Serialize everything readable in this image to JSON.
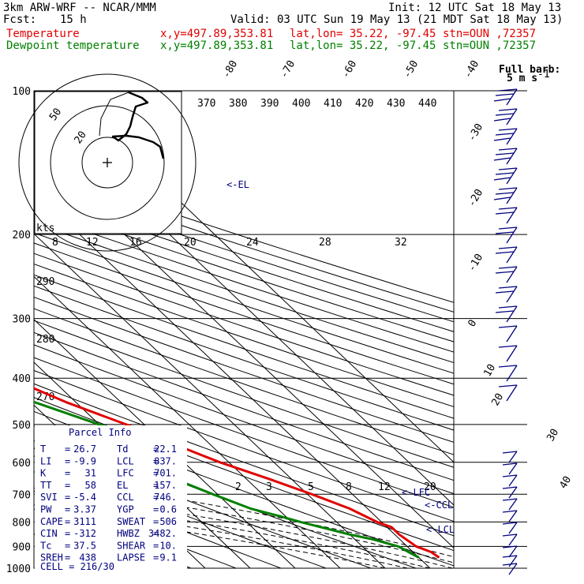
{
  "header": {
    "model": "3km ARW-WRF -- NCAR/MMM",
    "init": "Init: 12 UTC Sat 18 May 13",
    "fcst_label": "Fcst:",
    "fcst_value": "15 h",
    "valid": "Valid: 03 UTC Sun 19 May 13 (21 MDT Sat 18 May 13)",
    "temp_label": "Temperature",
    "dew_label": "Dewpoint temperature",
    "xy": "x,y=497.89,353.81",
    "latlon": "lat,lon= 35.22, -97.45",
    "stn": "stn=OUN ,72357"
  },
  "colors": {
    "temperature": "#e00000",
    "dewpoint": "#008000",
    "annotation": "#000080",
    "grid": "#000000"
  },
  "barb_legend": {
    "line1": "Full barb:",
    "line2": "5 m s",
    "sup": "-1"
  },
  "parcel_info": {
    "title": "Parcel Info",
    "rows": [
      [
        "T",
        "26.7",
        "Td",
        "22.1"
      ],
      [
        "LI",
        "-9.9",
        "LCL",
        "837."
      ],
      [
        "K",
        "31",
        "LFC",
        "701."
      ],
      [
        "TT",
        "58",
        "EL",
        "157."
      ],
      [
        "SVI",
        "-5.4",
        "CCL",
        "746."
      ],
      [
        "PW",
        "3.37",
        "YGP",
        "0.6"
      ],
      [
        "CAPE",
        "3111",
        "SWEAT",
        "506"
      ],
      [
        "CIN",
        "-312",
        "HWBZ",
        "3482."
      ],
      [
        "Tc",
        "37.5",
        "SHEAR",
        "10."
      ],
      [
        "SREH",
        "438",
        "LAPSE",
        "9.1"
      ]
    ],
    "cell": "CELL = 216/30"
  },
  "levels": {
    "el": "<-EL",
    "lfc": "<-LFC",
    "ccl": "<-CCL",
    "lcl": "<-LCL"
  },
  "hodograph": {
    "units": "kts",
    "ring_labels": [
      "50",
      "20"
    ]
  },
  "chart_data": {
    "type": "line",
    "subtype": "skew-T log-P",
    "pressure_ticks": [
      100,
      200,
      300,
      400,
      500,
      600,
      700,
      800,
      900,
      1000
    ],
    "plim": [
      100,
      1000
    ],
    "isotherm_labels": [
      -80,
      -70,
      -60,
      -50,
      -40,
      -30,
      -20,
      -10,
      0,
      10,
      20,
      30,
      40
    ],
    "theta_labels": [
      370,
      380,
      390,
      400,
      410,
      420,
      430,
      440
    ],
    "theta_e_labels": [
      290,
      280,
      270
    ],
    "mixing_ratio_labels_upper": [
      8,
      12,
      16,
      20,
      24,
      28,
      32
    ],
    "mixing_ratio_labels_lower": [
      2,
      3,
      5,
      8,
      12,
      20
    ],
    "series": [
      {
        "name": "Temperature",
        "p": [
          100,
          125,
          135,
          140,
          160,
          170,
          180,
          190,
          200,
          230,
          270,
          300,
          350,
          400,
          450,
          500,
          525,
          550,
          600,
          650,
          700,
          750,
          800,
          820,
          850,
          900,
          925,
          950
        ],
        "t": [
          -56,
          -60,
          -62,
          -62,
          -65,
          -66,
          -64,
          -62,
          -61,
          -56,
          -49,
          -44,
          -36,
          -29,
          -22,
          -14,
          -10,
          -8,
          -2,
          5,
          11,
          16,
          19,
          21,
          21,
          22,
          24,
          24.5
        ]
      },
      {
        "name": "Dewpoint temperature",
        "p": [
          100,
          120,
          140,
          150,
          160,
          170,
          180,
          190,
          200,
          250,
          300,
          350,
          400,
          450,
          500,
          525,
          550,
          600,
          650,
          700,
          750,
          780,
          800,
          850,
          870,
          900,
          925,
          950
        ],
        "t": [
          -80,
          -82,
          -86,
          -87,
          -86,
          -82,
          -81,
          -80,
          -78,
          -67,
          -57,
          -45,
          -39,
          -29,
          -20,
          -14,
          -15,
          -16,
          -16,
          -11,
          -6,
          -1,
          2,
          10,
          14,
          18,
          19,
          20
        ]
      }
    ],
    "grid": true
  }
}
